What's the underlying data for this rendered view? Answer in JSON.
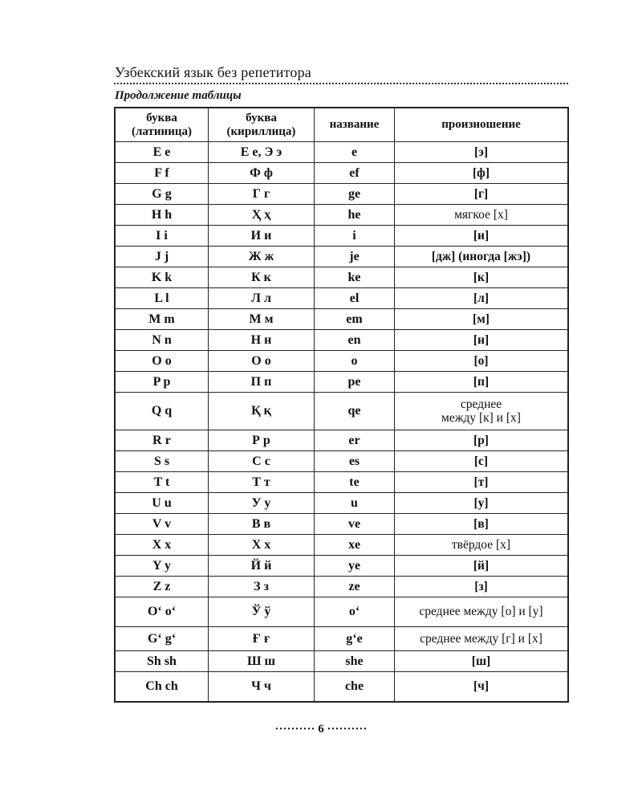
{
  "header": {
    "title": "Узбекский язык без репетитора",
    "subtitle": "Продолжение таблицы"
  },
  "table": {
    "columns": [
      "буква (латиница)",
      "буква (кириллица)",
      "название",
      "произношение"
    ],
    "column_lines": [
      [
        "буква",
        "(латиница)"
      ],
      [
        "буква",
        "(кириллица)"
      ],
      [
        "название"
      ],
      [
        "произношение"
      ]
    ],
    "rows": [
      {
        "latin": "E e",
        "cyrillic": "Е е, Э э",
        "name": "e",
        "pron": "[э]"
      },
      {
        "latin": "F f",
        "cyrillic": "Ф ф",
        "name": "ef",
        "pron": "[ф]"
      },
      {
        "latin": "G g",
        "cyrillic": "Г г",
        "name": "ge",
        "pron": "[г]"
      },
      {
        "latin": "H h",
        "cyrillic": "Ҳ ҳ",
        "name": "he",
        "pron": "мягкое [х]"
      },
      {
        "latin": "I i",
        "cyrillic": "И и",
        "name": "i",
        "pron": "[и]"
      },
      {
        "latin": "J j",
        "cyrillic": "Ж ж",
        "name": "je",
        "pron": "[дж] (иногда [жэ])"
      },
      {
        "latin": "K k",
        "cyrillic": "К к",
        "name": "ke",
        "pron": "[к]"
      },
      {
        "latin": "L l",
        "cyrillic": "Л л",
        "name": "el",
        "pron": "[л]"
      },
      {
        "latin": "M m",
        "cyrillic": "М м",
        "name": "em",
        "pron": "[м]"
      },
      {
        "latin": "N n",
        "cyrillic": "Н н",
        "name": "en",
        "pron": "[н]"
      },
      {
        "latin": "O o",
        "cyrillic": "О о",
        "name": "o",
        "pron": "[о]"
      },
      {
        "latin": "P p",
        "cyrillic": "П п",
        "name": "pe",
        "pron": "[п]"
      },
      {
        "latin": "Q q",
        "cyrillic": "Қ қ",
        "name": "qe",
        "pron": "среднее между [к] и [х]",
        "pron_lines": [
          "среднее",
          "между [к] и [х]"
        ]
      },
      {
        "latin": "R r",
        "cyrillic": "Р р",
        "name": "er",
        "pron": "[р]"
      },
      {
        "latin": "S s",
        "cyrillic": "С с",
        "name": "es",
        "pron": "[с]"
      },
      {
        "latin": "T t",
        "cyrillic": "Т т",
        "name": "te",
        "pron": "[т]"
      },
      {
        "latin": "U u",
        "cyrillic": "У у",
        "name": "u",
        "pron": "[у]"
      },
      {
        "latin": "V v",
        "cyrillic": "В в",
        "name": "ve",
        "pron": "[в]"
      },
      {
        "latin": "X x",
        "cyrillic": "Х х",
        "name": "xe",
        "pron": "твёрдое [х]"
      },
      {
        "latin": "Y y",
        "cyrillic": "Й й",
        "name": "ye",
        "pron": "[й]"
      },
      {
        "latin": "Z z",
        "cyrillic": "З з",
        "name": "ze",
        "pron": "[з]"
      },
      {
        "latin": "O‘ o‘",
        "cyrillic": "Ў ў",
        "name": "o‘",
        "pron": "среднее между [о] и [у]"
      },
      {
        "latin": "G‘ g‘",
        "cyrillic": "Ғ ғ",
        "name": "g‘e",
        "pron": "среднее между [г] и [х]"
      },
      {
        "latin": "Sh sh",
        "cyrillic": "Ш ш",
        "name": "she",
        "pron": "[ш]"
      },
      {
        "latin": "Ch ch",
        "cyrillic": "Ч ч",
        "name": "che",
        "pron": "[ч]"
      }
    ]
  },
  "footer": {
    "page_number": "6",
    "page_label": "·········· 6 ··········"
  }
}
